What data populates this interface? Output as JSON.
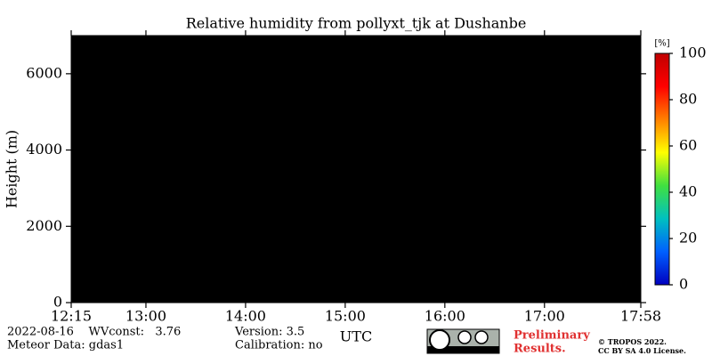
{
  "chart_data": {
    "type": "heatmap",
    "title": "Relative humidity from pollyxt_tjk at Dushanbe",
    "ylabel": "Height (m)",
    "xlabel": "UTC",
    "xlim": [
      "12:15",
      "17:58"
    ],
    "xticks": [
      "12:15",
      "13:00",
      "14:00",
      "15:00",
      "16:00",
      "17:00",
      "17:58"
    ],
    "ylim": [
      0,
      7000
    ],
    "yticks": [
      0,
      2000,
      4000,
      6000
    ],
    "plot_background": "#000000",
    "colorbar": {
      "label": "[%]",
      "lim": [
        0,
        100
      ],
      "ticks": [
        0,
        20,
        40,
        60,
        80,
        100
      ],
      "colors": [
        "#0000c0",
        "#0060ff",
        "#00c0c0",
        "#40e040",
        "#ffff00",
        "#ff8000",
        "#ff0000",
        "#c00000"
      ]
    }
  },
  "footer": {
    "date_wv": "2022-08-16    WVconst:   3.76",
    "meteor": "Meteor Data: gdas1",
    "version": "Version: 3.5",
    "calibration": "Calibration: no",
    "preliminary": [
      "Preliminary",
      "Results."
    ],
    "copyright": [
      "© TROPOS 2022.",
      "CC BY SA 4.0 License."
    ]
  }
}
